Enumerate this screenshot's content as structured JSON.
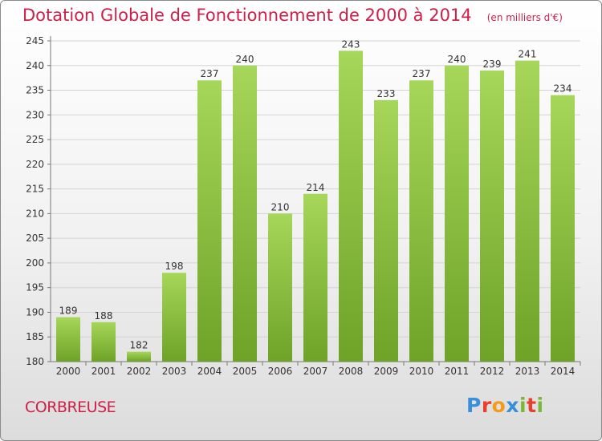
{
  "chart_data": {
    "type": "bar",
    "title": "Dotation Globale de Fonctionnement de 2000 à 2014",
    "subtitle": "(en milliers d'€)",
    "xlabel": "",
    "ylabel": "",
    "categories": [
      "2000",
      "2001",
      "2002",
      "2003",
      "2004",
      "2005",
      "2006",
      "2007",
      "2008",
      "2009",
      "2010",
      "2011",
      "2012",
      "2013",
      "2014"
    ],
    "values": [
      189,
      188,
      182,
      198,
      237,
      240,
      210,
      214,
      243,
      233,
      237,
      240,
      239,
      241,
      234
    ],
    "ylim": [
      180,
      245
    ],
    "yticks": [
      180,
      185,
      190,
      195,
      200,
      205,
      210,
      215,
      220,
      225,
      230,
      235,
      240,
      245
    ],
    "grid": true,
    "legend": "none",
    "colors": {
      "bar_light": "#a6d65a",
      "bar_dark": "#6ea327",
      "title": "#cc1f4a"
    }
  },
  "commune": "CORBREUSE",
  "brand": {
    "name": "Proxiti",
    "letters": [
      {
        "ch": "P",
        "color": "#3a8fd9"
      },
      {
        "ch": "r",
        "color": "#e8402a"
      },
      {
        "ch": "o",
        "color": "#f39c1c"
      },
      {
        "ch": "x",
        "color": "#3a8fd9"
      },
      {
        "ch": "i",
        "color": "#7ab83a"
      },
      {
        "ch": "t",
        "color": "#e8402a"
      },
      {
        "ch": "i",
        "color": "#7ab83a"
      }
    ]
  }
}
